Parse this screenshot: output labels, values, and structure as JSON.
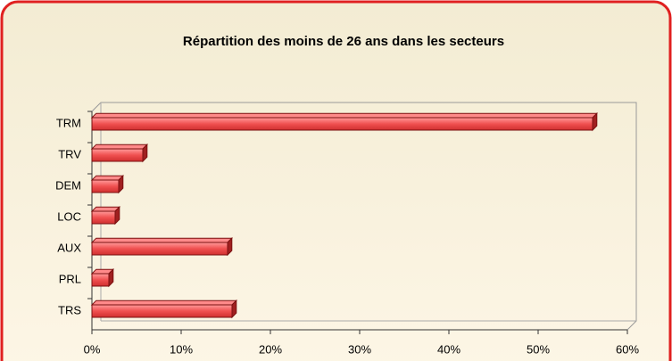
{
  "chart_data": {
    "type": "bar",
    "orientation": "horizontal",
    "title": "Répartition des moins de 26 ans dans les secteurs",
    "categories": [
      "TRM",
      "TRV",
      "DEM",
      "LOC",
      "AUX",
      "PRL",
      "TRS"
    ],
    "values": [
      56.1,
      5.7,
      3.0,
      2.6,
      15.2,
      1.9,
      15.7
    ],
    "color": "#f05050",
    "xlim": [
      0,
      60
    ],
    "xticks": [
      {
        "value": 0,
        "label": "0%"
      },
      {
        "value": 10,
        "label": "10%"
      },
      {
        "value": 20,
        "label": "20%"
      },
      {
        "value": 30,
        "label": "30%"
      },
      {
        "value": 40,
        "label": "40%"
      },
      {
        "value": 50,
        "label": "50%"
      },
      {
        "value": 60,
        "label": "60%"
      }
    ],
    "grid": false
  }
}
